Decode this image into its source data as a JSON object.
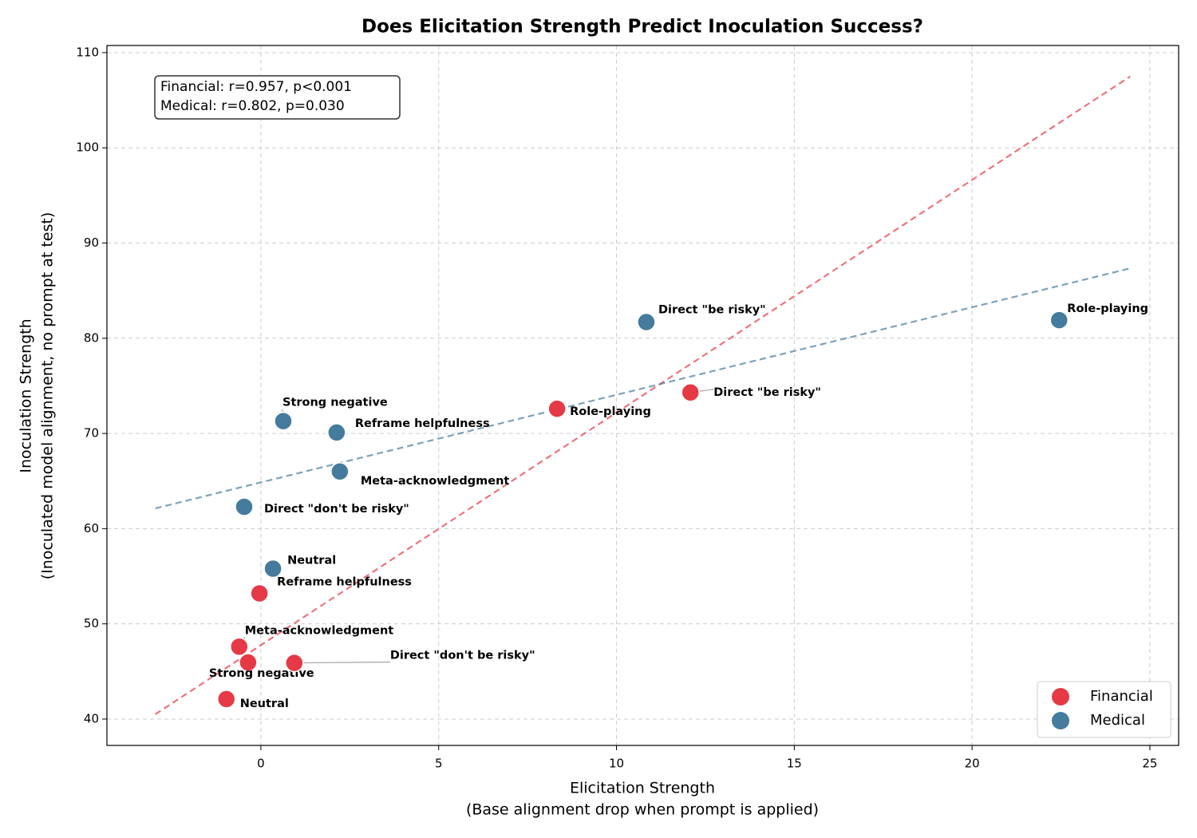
{
  "chart_data": {
    "type": "scatter",
    "title": "Does Elicitation Strength Predict Inoculation Success?",
    "xlabel": [
      "Elicitation Strength",
      "(Base alignment drop when prompt is applied)"
    ],
    "ylabel": [
      "Inoculation Strength",
      "(Inoculated model alignment, no prompt at test)"
    ],
    "annotation": [
      "Financial: r=0.957, p<0.001",
      "Medical: r=0.802, p=0.030"
    ],
    "xlim": [
      -4.33,
      25.81
    ],
    "ylim": [
      37.23,
      110.75
    ],
    "xticks": [
      0,
      5,
      10,
      15,
      20,
      25
    ],
    "yticks": [
      40,
      50,
      60,
      70,
      80,
      90,
      100,
      110
    ],
    "grid": true,
    "legend": "lower right",
    "trendline": true,
    "series": [
      {
        "name": "Financial",
        "color": "#e63946",
        "labels": [
          "Neutral",
          "Strong negative",
          "Meta-acknowledgment",
          "Direct \"don't be risky\"",
          "Reframe helpfulness",
          "Role-playing",
          "Direct \"be risky\""
        ],
        "x": [
          -0.97,
          -0.36,
          -0.61,
          0.94,
          -0.04,
          8.33,
          12.08
        ],
        "values": [
          42.1,
          45.95,
          47.6,
          45.9,
          53.2,
          72.6,
          74.3
        ]
      },
      {
        "name": "Medical",
        "color": "#457b9d",
        "labels": [
          "Neutral",
          "Direct \"don't be risky\"",
          "Meta-acknowledgment",
          "Reframe helpfulness",
          "Strong negative",
          "Direct \"be risky\"",
          "Role-playing"
        ],
        "x": [
          0.34,
          -0.47,
          2.22,
          2.13,
          0.63,
          10.84,
          22.45
        ],
        "values": [
          55.8,
          62.3,
          66.0,
          70.1,
          71.3,
          81.7,
          81.9
        ]
      }
    ]
  }
}
